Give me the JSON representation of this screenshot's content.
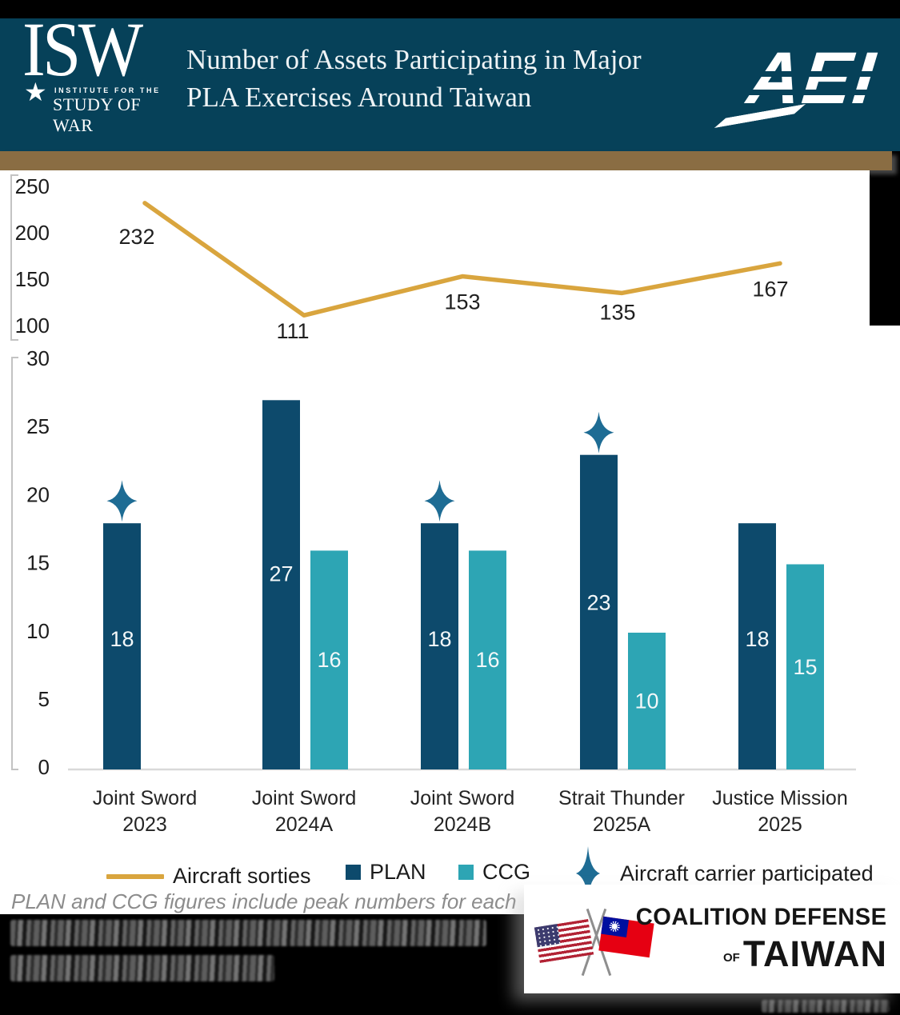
{
  "header": {
    "isw": {
      "acronym": "ISW",
      "star": "★",
      "caption_line1": "INSTITUTE FOR THE",
      "caption_line2": "STUDY OF WAR"
    },
    "title_line1": "Number of Assets Participating in Major",
    "title_line2": "PLA Exercises Around Taiwan",
    "aei": "AEI"
  },
  "colors": {
    "header_bg": "#064159",
    "gold_bar": "#8a6d43",
    "gold_line": "#d9a53e",
    "plan_navy": "#0d4a6c",
    "ccg_teal": "#2da5b4",
    "star_blue": "#1e6c94",
    "axis_line": "#c3c3c3",
    "baseline": "#d9d9d9",
    "note_gray": "#8c8c8c"
  },
  "chart_data": [
    {
      "type": "line",
      "name": "Aircraft sorties",
      "categories": [
        "Joint Sword 2023",
        "Joint Sword 2024A",
        "Joint Sword 2024B",
        "Strait Thunder 2025A",
        "Justice Mission 2025"
      ],
      "values": [
        232,
        111,
        153,
        135,
        167
      ],
      "yticks": [
        250,
        200,
        150,
        100
      ],
      "ylim": [
        100,
        250
      ],
      "grid": false,
      "color_key": "gold_line"
    },
    {
      "type": "bar",
      "categories": [
        [
          "Joint Sword",
          "2023"
        ],
        [
          "Joint Sword",
          "2024A"
        ],
        [
          "Joint Sword",
          "2024B"
        ],
        [
          "Strait Thunder",
          "2025A"
        ],
        [
          "Justice Mission",
          "2025"
        ]
      ],
      "series": [
        {
          "name": "PLAN",
          "color_key": "plan_navy",
          "values": [
            18,
            27,
            18,
            23,
            18
          ]
        },
        {
          "name": "CCG",
          "color_key": "ccg_teal",
          "values": [
            null,
            16,
            16,
            10,
            15
          ]
        }
      ],
      "aircraft_carrier_participated": [
        true,
        false,
        true,
        true,
        false
      ],
      "yticks": [
        30,
        25,
        20,
        15,
        10,
        5,
        0
      ],
      "ylim": [
        0,
        30
      ],
      "grid": false
    }
  ],
  "legend": {
    "items": [
      {
        "label": "Aircraft sorties",
        "swatch": "gold-line"
      },
      {
        "label": "PLAN",
        "swatch": "navy-square"
      },
      {
        "label": "CCG",
        "swatch": "teal-square"
      },
      {
        "label": "Aircraft carrier participated",
        "swatch": "star"
      }
    ]
  },
  "footnote": {
    "line1": "PLAN and CCG figures include peak numbers for each",
    "lines_2_3": "redacted"
  },
  "branding": {
    "coalition_line1": "COALITION DEFENSE",
    "coalition_of": "OF",
    "coalition_line2": "TAIWAN"
  }
}
